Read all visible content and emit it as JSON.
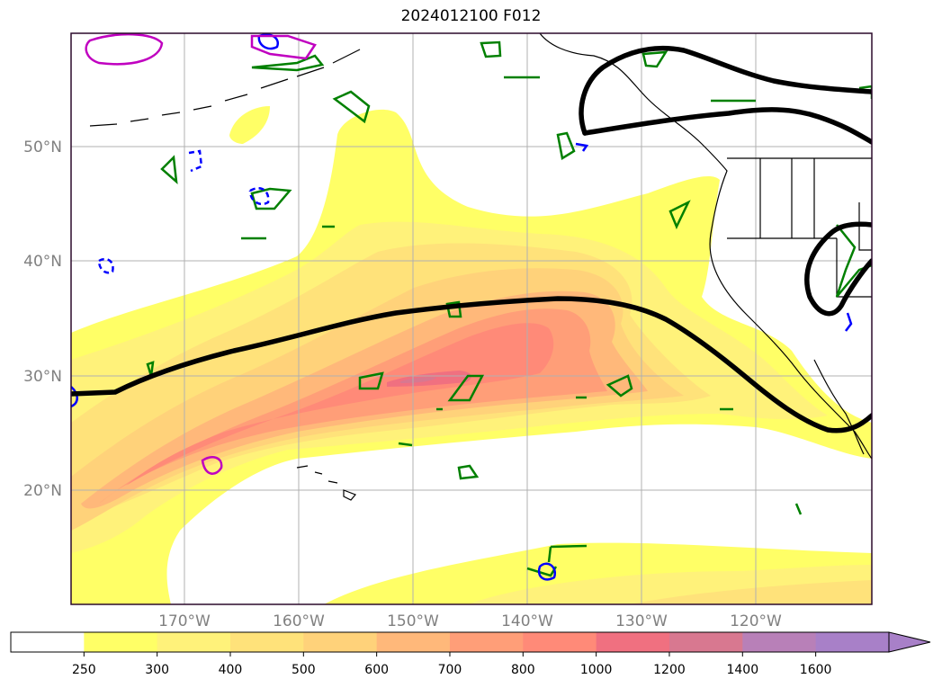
{
  "title": "2024012100 F012",
  "latitude_labels": [
    "50°N",
    "40°N",
    "30°N",
    "20°N"
  ],
  "longitude_labels": [
    "170°W",
    "160°W",
    "150°W",
    "140°W",
    "130°W",
    "120°W"
  ],
  "colorbar": {
    "ticks": [
      "250",
      "300",
      "400",
      "500",
      "600",
      "700",
      "800",
      "1000",
      "1200",
      "1400",
      "1600"
    ],
    "colors": [
      "#ffffff",
      "#ffff66",
      "#fff27a",
      "#ffe27a",
      "#ffd27a",
      "#ffb87a",
      "#ff9e78",
      "#ff8a78",
      "#f07080",
      "#d87890",
      "#b880b8",
      "#a880c8"
    ],
    "extend": "max"
  },
  "colors": {
    "jet_contour": "#000000",
    "green_contour": "#008000",
    "blue_contour": "#0000ff",
    "magenta_contour": "#c000c0",
    "grid": "#b0b0b0",
    "frame": "#2b0a2b"
  }
}
